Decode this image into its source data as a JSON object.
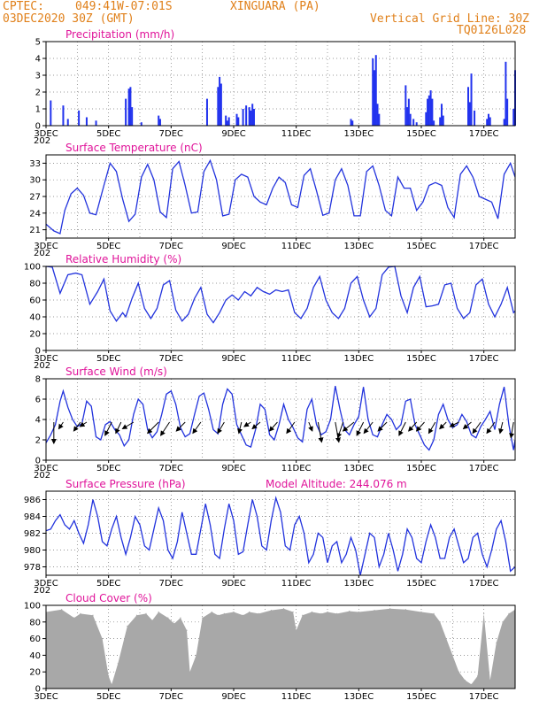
{
  "header": {
    "source_label": "CPTEC:",
    "coords": "049:41W-07:01S",
    "location": "XINGUARA (PA)",
    "init_time": "03DEC2020 30Z (GMT)",
    "grid_note": "Vertical Grid Line: 30Z",
    "model_code": "TQ0126L028"
  },
  "colors": {
    "header": "#e0801a",
    "title": "#e0149a",
    "line": "#2233dd",
    "bar": "#2233ee",
    "cloud": "#a8a8a8"
  },
  "x_axis": {
    "ticks": [
      "3DEC",
      "5DEC",
      "7DEC",
      "9DEC",
      "11DEC",
      "13DEC",
      "15DEC",
      "17DEC"
    ],
    "year_fragment": "202",
    "day_start": 3.0,
    "day_end": 18.0
  },
  "chart_data": [
    {
      "id": "precip",
      "type": "bar",
      "title": "Precipitation (mm/h)",
      "ylim": [
        0,
        5
      ],
      "yticks": [
        "0",
        "1",
        "2",
        "3",
        "4",
        "5"
      ],
      "x_days": [
        3.15,
        3.55,
        3.7,
        4.05,
        4.3,
        4.6,
        5.55,
        5.65,
        5.7,
        5.75,
        6.05,
        6.6,
        6.65,
        8.15,
        8.5,
        8.55,
        8.6,
        8.75,
        8.8,
        8.85,
        9.1,
        9.15,
        9.3,
        9.4,
        9.5,
        9.55,
        9.6,
        9.65,
        12.75,
        12.8,
        13.45,
        13.5,
        13.55,
        13.6,
        13.65,
        14.5,
        14.55,
        14.6,
        14.65,
        14.75,
        14.85,
        15.15,
        15.2,
        15.25,
        15.3,
        15.35,
        15.4,
        15.6,
        15.65,
        15.7,
        16.5,
        16.55,
        16.6,
        16.7,
        17.1,
        17.15,
        17.2,
        17.65,
        17.7,
        17.75,
        17.95,
        18.0
      ],
      "values": [
        1.5,
        1.2,
        0.4,
        0.9,
        0.5,
        0.3,
        1.6,
        2.2,
        2.3,
        1.1,
        0.2,
        0.6,
        0.4,
        1.6,
        2.3,
        2.9,
        2.5,
        0.6,
        0.3,
        0.5,
        0.7,
        0.5,
        1.0,
        1.2,
        1.1,
        0.9,
        1.3,
        1.0,
        0.4,
        0.3,
        4.0,
        3.3,
        4.2,
        1.3,
        0.7,
        2.4,
        1.1,
        1.6,
        0.7,
        0.4,
        0.2,
        0.8,
        1.6,
        1.8,
        2.1,
        1.6,
        0.3,
        0.5,
        1.3,
        0.6,
        2.3,
        1.4,
        3.1,
        0.9,
        0.4,
        0.7,
        0.5,
        0.4,
        3.8,
        1.6,
        1.0,
        3.3
      ]
    },
    {
      "id": "temp",
      "type": "line",
      "title": "Surface Temperature (nC)",
      "ylim": [
        19.5,
        34.5
      ],
      "yticks": [
        "21",
        "24",
        "27",
        "30",
        "33"
      ],
      "ytick_values": [
        21,
        24,
        27,
        30,
        33
      ],
      "x_days": [
        3.0,
        3.25,
        3.45,
        3.6,
        3.8,
        4.0,
        4.2,
        4.4,
        4.6,
        4.85,
        5.05,
        5.25,
        5.45,
        5.65,
        5.85,
        6.05,
        6.25,
        6.45,
        6.65,
        6.85,
        7.05,
        7.25,
        7.45,
        7.65,
        7.85,
        8.05,
        8.25,
        8.45,
        8.65,
        8.85,
        9.05,
        9.25,
        9.45,
        9.65,
        9.85,
        10.05,
        10.25,
        10.45,
        10.65,
        10.85,
        11.05,
        11.25,
        11.45,
        11.65,
        11.85,
        12.05,
        12.25,
        12.45,
        12.65,
        12.85,
        13.05,
        13.25,
        13.45,
        13.65,
        13.85,
        14.05,
        14.25,
        14.45,
        14.65,
        14.85,
        15.05,
        15.25,
        15.45,
        15.65,
        15.85,
        16.05,
        16.25,
        16.45,
        16.65,
        16.85,
        17.05,
        17.25,
        17.45,
        17.65,
        17.85,
        18.0
      ],
      "values": [
        22.0,
        20.8,
        20.3,
        24.5,
        27.5,
        28.5,
        27.2,
        24.0,
        23.7,
        29.0,
        33.0,
        31.5,
        26.5,
        22.5,
        23.8,
        30.5,
        32.8,
        30.0,
        24.2,
        23.2,
        32.0,
        33.3,
        29.0,
        24.0,
        24.2,
        31.5,
        33.5,
        30.0,
        23.5,
        23.8,
        30.0,
        31.0,
        30.5,
        27.0,
        26.0,
        25.5,
        28.5,
        30.5,
        29.5,
        25.5,
        25.0,
        30.8,
        32.0,
        28.0,
        23.6,
        24.0,
        30.0,
        32.0,
        29.0,
        23.5,
        23.5,
        31.5,
        32.5,
        29.0,
        24.5,
        23.5,
        30.5,
        28.5,
        28.5,
        24.5,
        26.0,
        29.0,
        29.5,
        29.0,
        25.0,
        23.2,
        31.0,
        32.5,
        30.5,
        27.0,
        26.5,
        26.0,
        23.0,
        31.0,
        33.0,
        30.5
      ]
    },
    {
      "id": "rh",
      "type": "line",
      "title": "Relative Humidity (%)",
      "ylim": [
        0,
        100
      ],
      "yticks": [
        "0",
        "20",
        "40",
        "60",
        "80",
        "100"
      ],
      "ytick_values": [
        0,
        20,
        40,
        60,
        80,
        100
      ],
      "x_days": [
        3.0,
        3.2,
        3.45,
        3.7,
        3.95,
        4.15,
        4.4,
        4.65,
        4.85,
        5.05,
        5.25,
        5.45,
        5.55,
        5.75,
        5.95,
        6.15,
        6.35,
        6.55,
        6.75,
        6.95,
        7.15,
        7.35,
        7.55,
        7.75,
        7.95,
        8.15,
        8.35,
        8.55,
        8.75,
        8.95,
        9.15,
        9.35,
        9.55,
        9.75,
        9.95,
        10.15,
        10.35,
        10.55,
        10.75,
        10.95,
        11.15,
        11.35,
        11.55,
        11.75,
        11.95,
        12.15,
        12.35,
        12.55,
        12.75,
        12.95,
        13.15,
        13.35,
        13.55,
        13.75,
        13.95,
        14.15,
        14.35,
        14.55,
        14.75,
        14.95,
        15.15,
        15.35,
        15.55,
        15.75,
        15.95,
        16.15,
        16.35,
        16.55,
        16.75,
        16.95,
        17.15,
        17.35,
        17.55,
        17.75,
        17.95,
        18.0
      ],
      "values": [
        100,
        99,
        68,
        90,
        92,
        90,
        55,
        70,
        85,
        47,
        35,
        45,
        40,
        62,
        80,
        50,
        38,
        50,
        78,
        83,
        48,
        35,
        43,
        62,
        75,
        43,
        33,
        45,
        60,
        66,
        60,
        70,
        65,
        75,
        70,
        67,
        72,
        70,
        72,
        45,
        38,
        50,
        75,
        88,
        60,
        45,
        38,
        50,
        80,
        88,
        60,
        40,
        50,
        90,
        99,
        100,
        65,
        45,
        75,
        88,
        52,
        53,
        55,
        78,
        80,
        50,
        38,
        45,
        78,
        85,
        55,
        40,
        55,
        75,
        45,
        47
      ]
    },
    {
      "id": "wind",
      "type": "line",
      "title": "Surface Wind (m/s)",
      "ylim": [
        0,
        8
      ],
      "yticks": [
        "0",
        "2",
        "4",
        "6",
        "8"
      ],
      "ytick_values": [
        0,
        2,
        4,
        6,
        8
      ],
      "x_days": [
        3.0,
        3.15,
        3.3,
        3.45,
        3.55,
        3.7,
        3.85,
        4.0,
        4.15,
        4.3,
        4.45,
        4.6,
        4.75,
        4.9,
        5.05,
        5.2,
        5.35,
        5.5,
        5.65,
        5.8,
        5.95,
        6.1,
        6.25,
        6.4,
        6.55,
        6.7,
        6.85,
        7.0,
        7.15,
        7.3,
        7.45,
        7.6,
        7.75,
        7.9,
        8.05,
        8.2,
        8.35,
        8.5,
        8.65,
        8.8,
        8.95,
        9.1,
        9.25,
        9.4,
        9.55,
        9.7,
        9.85,
        10.0,
        10.15,
        10.3,
        10.45,
        10.6,
        10.75,
        10.9,
        11.05,
        11.2,
        11.35,
        11.5,
        11.65,
        11.8,
        11.95,
        12.1,
        12.25,
        12.4,
        12.55,
        12.7,
        12.85,
        13.0,
        13.15,
        13.3,
        13.45,
        13.6,
        13.75,
        13.9,
        14.05,
        14.2,
        14.35,
        14.5,
        14.65,
        14.8,
        14.95,
        15.1,
        15.25,
        15.4,
        15.55,
        15.7,
        15.85,
        16.0,
        16.15,
        16.3,
        16.45,
        16.6,
        16.75,
        16.9,
        17.05,
        17.2,
        17.35,
        17.5,
        17.65,
        17.8,
        17.95,
        18.0
      ],
      "values": [
        1.7,
        2.5,
        3.5,
        5.8,
        6.8,
        5.2,
        4.0,
        3.3,
        3.6,
        5.8,
        5.3,
        2.3,
        2.0,
        3.5,
        3.8,
        3.0,
        2.5,
        1.4,
        2.0,
        4.5,
        6.0,
        5.5,
        3.0,
        2.2,
        2.8,
        4.5,
        6.5,
        6.8,
        5.5,
        3.2,
        2.3,
        2.6,
        4.5,
        6.3,
        6.6,
        5.0,
        3.0,
        2.6,
        5.5,
        7.0,
        6.5,
        3.5,
        2.5,
        1.5,
        1.3,
        3.0,
        5.5,
        5.0,
        2.5,
        2.0,
        3.5,
        5.5,
        4.0,
        3.2,
        2.2,
        1.8,
        5.0,
        6.0,
        3.5,
        2.5,
        2.8,
        4.0,
        7.3,
        5.0,
        3.0,
        2.5,
        3.5,
        4.3,
        7.2,
        4.0,
        2.5,
        2.3,
        3.5,
        4.5,
        4.0,
        3.0,
        3.5,
        5.8,
        6.0,
        3.5,
        2.5,
        1.5,
        1.0,
        2.0,
        4.5,
        5.5,
        4.0,
        3.2,
        3.5,
        4.5,
        3.8,
        2.5,
        2.2,
        3.3,
        4.0,
        4.8,
        3.0,
        5.5,
        7.2,
        3.5,
        1.0,
        2.0
      ],
      "barb_x_days": [
        3.25,
        3.55,
        4.1,
        4.3,
        5.1,
        5.4,
        5.8,
        6.6,
        6.95,
        7.45,
        7.95,
        8.7,
        9.25,
        9.55,
        9.85,
        10.4,
        10.95,
        11.4,
        11.7,
        12.25,
        12.5,
        12.85,
        13.15,
        13.45,
        13.9,
        14.5,
        14.85,
        15.1,
        15.45,
        15.8,
        16.2,
        16.6,
        16.9,
        17.35,
        17.6,
        17.95
      ],
      "barb_u": [
        0.0,
        1.0,
        1.5,
        1.5,
        1.5,
        1.2,
        2.5,
        2.5,
        2.0,
        2.0,
        1.8,
        1.5,
        0.6,
        1.5,
        1.8,
        1.8,
        1.8,
        -0.8,
        -0.8,
        -0.8,
        1.2,
        2.5,
        1.5,
        2.0,
        2.0,
        1.5,
        1.8,
        1.8,
        1.5,
        1.5,
        2.0,
        1.8,
        1.8,
        1.8,
        0.6,
        0.6
      ],
      "barb_v": [
        4.8,
        1.5,
        2.0,
        1.0,
        3.0,
        2.5,
        1.5,
        2.5,
        3.0,
        2.0,
        2.5,
        2.5,
        2.5,
        1.0,
        1.5,
        2.0,
        2.5,
        2.0,
        4.5,
        4.5,
        3.5,
        2.0,
        3.0,
        2.5,
        2.0,
        3.0,
        2.0,
        2.0,
        2.5,
        1.5,
        1.0,
        1.5,
        2.5,
        2.5,
        2.5,
        3.5
      ]
    },
    {
      "id": "pres",
      "type": "line",
      "title": "Surface Pressure (hPa)",
      "subtitle": "Model Altitude: 244.076 m",
      "ylim": [
        977,
        987
      ],
      "yticks": [
        "978",
        "980",
        "982",
        "984",
        "986"
      ],
      "ytick_values": [
        978,
        980,
        982,
        984,
        986
      ],
      "x_days": [
        3.0,
        3.15,
        3.3,
        3.45,
        3.6,
        3.75,
        3.9,
        4.05,
        4.2,
        4.35,
        4.5,
        4.65,
        4.8,
        4.95,
        5.1,
        5.25,
        5.4,
        5.55,
        5.7,
        5.85,
        6.0,
        6.15,
        6.3,
        6.45,
        6.6,
        6.75,
        6.9,
        7.05,
        7.2,
        7.35,
        7.5,
        7.65,
        7.8,
        7.95,
        8.1,
        8.25,
        8.4,
        8.55,
        8.7,
        8.85,
        9.0,
        9.15,
        9.3,
        9.45,
        9.6,
        9.75,
        9.9,
        10.05,
        10.2,
        10.35,
        10.5,
        10.65,
        10.8,
        10.95,
        11.1,
        11.25,
        11.4,
        11.55,
        11.7,
        11.85,
        12.0,
        12.15,
        12.3,
        12.45,
        12.6,
        12.75,
        12.9,
        13.05,
        13.2,
        13.35,
        13.5,
        13.65,
        13.8,
        13.95,
        14.1,
        14.25,
        14.4,
        14.55,
        14.7,
        14.85,
        15.0,
        15.15,
        15.3,
        15.45,
        15.6,
        15.75,
        15.9,
        16.05,
        16.2,
        16.35,
        16.5,
        16.65,
        16.8,
        16.95,
        17.1,
        17.25,
        17.4,
        17.55,
        17.7,
        17.85,
        18.0
      ],
      "values": [
        982.3,
        982.5,
        983.5,
        984.2,
        983.0,
        982.5,
        983.5,
        982.0,
        980.8,
        983.0,
        986.0,
        984.0,
        981.0,
        980.5,
        982.5,
        984.0,
        981.5,
        979.5,
        981.5,
        984.0,
        983.0,
        980.5,
        980.0,
        982.5,
        985.0,
        983.5,
        980.0,
        979.0,
        981.0,
        984.5,
        982.0,
        979.5,
        979.5,
        982.5,
        985.5,
        983.0,
        979.5,
        979.0,
        982.5,
        985.5,
        983.5,
        979.5,
        979.8,
        983.0,
        986.0,
        984.0,
        980.5,
        980.0,
        983.5,
        986.2,
        984.5,
        980.5,
        980.0,
        983.0,
        984.0,
        982.0,
        978.5,
        979.5,
        982.0,
        981.5,
        978.5,
        980.5,
        981.0,
        978.5,
        979.5,
        981.5,
        980.0,
        977.0,
        979.5,
        982.0,
        981.5,
        978.0,
        979.5,
        982.0,
        980.0,
        977.5,
        979.5,
        982.5,
        981.5,
        979.0,
        978.5,
        981.0,
        983.0,
        981.5,
        979.0,
        979.0,
        981.5,
        982.5,
        980.5,
        978.5,
        979.0,
        981.5,
        982.0,
        979.5,
        978.0,
        980.0,
        982.5,
        983.5,
        981.0,
        977.5,
        978.0
      ]
    },
    {
      "id": "cloud",
      "type": "bar",
      "title": "Cloud Cover (%)",
      "ylim": [
        0,
        100
      ],
      "yticks": [
        "0",
        "20",
        "40",
        "60",
        "80",
        "100"
      ],
      "ytick_values": [
        0,
        20,
        40,
        60,
        80,
        100
      ],
      "x_days": [
        3.0,
        3.5,
        3.9,
        4.1,
        4.5,
        4.8,
        5.0,
        5.1,
        5.3,
        5.6,
        5.9,
        6.2,
        6.4,
        6.6,
        6.9,
        7.1,
        7.3,
        7.5,
        7.6,
        7.8,
        8.0,
        8.3,
        8.5,
        8.7,
        9.0,
        9.3,
        9.5,
        9.8,
        10.2,
        10.6,
        10.9,
        11.0,
        11.2,
        11.5,
        11.8,
        12.0,
        12.3,
        12.7,
        13.0,
        13.5,
        14.0,
        14.5,
        15.0,
        15.4,
        15.6,
        15.8,
        16.0,
        16.2,
        16.4,
        16.6,
        16.8,
        17.0,
        17.2,
        17.4,
        17.6,
        17.8,
        18.0
      ],
      "values": [
        92,
        95,
        85,
        90,
        88,
        60,
        15,
        5,
        30,
        75,
        88,
        90,
        82,
        92,
        85,
        78,
        85,
        70,
        20,
        40,
        85,
        92,
        88,
        90,
        92,
        88,
        92,
        90,
        94,
        96,
        92,
        70,
        88,
        92,
        90,
        92,
        90,
        93,
        92,
        94,
        96,
        95,
        92,
        90,
        80,
        60,
        40,
        20,
        10,
        5,
        15,
        90,
        10,
        55,
        80,
        90,
        95
      ]
    }
  ]
}
